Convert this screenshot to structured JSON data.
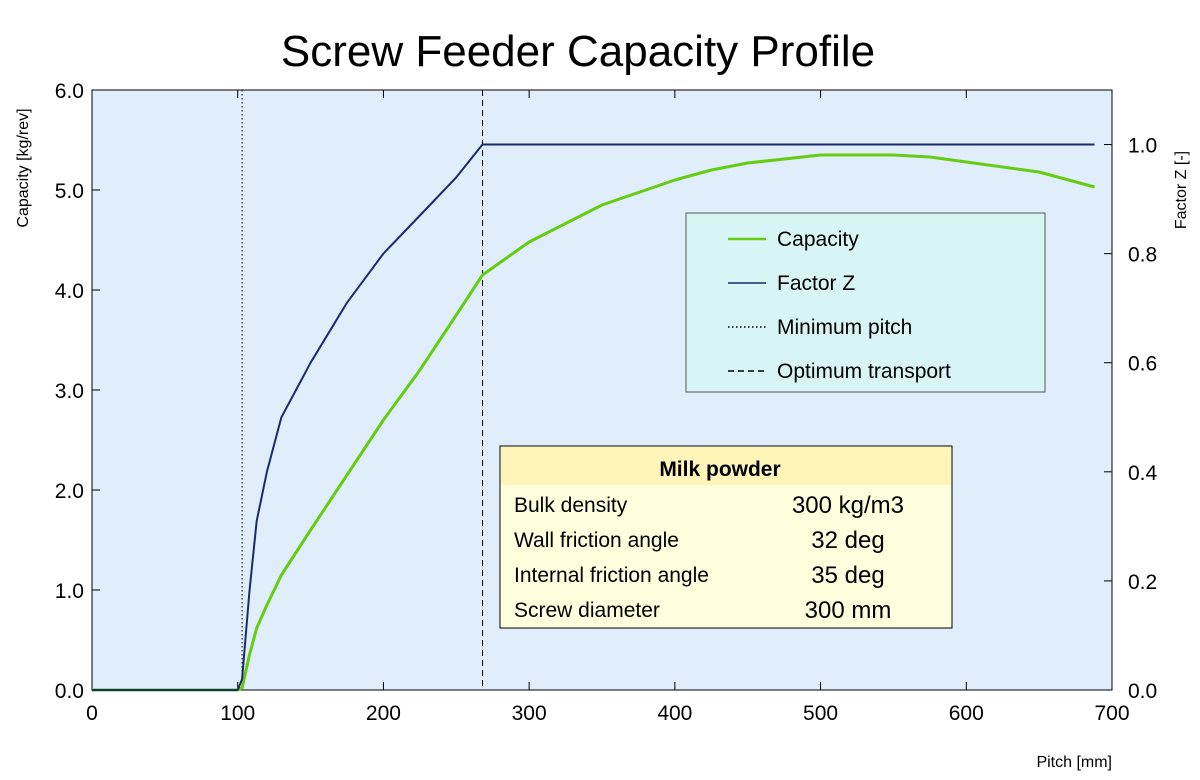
{
  "colors": {
    "plot_bg": "#e0eefb",
    "capacity": "#66cc11",
    "factor_z": "#1a2a6c",
    "legend_bg": "#d8f5f6",
    "info_bg": "#ffffdd",
    "info_header_bg": "#fff5b8"
  },
  "chart_data": {
    "type": "line",
    "title": "Screw Feeder Capacity Profile",
    "xlabel": "Pitch [mm]",
    "ylabel": "Capacity [kg/rev]",
    "y2label": "Factor Z [-]",
    "xlim": [
      0,
      700
    ],
    "ylim": [
      0,
      6
    ],
    "y2lim": [
      0,
      1.1
    ],
    "x_ticks": [
      0,
      100,
      200,
      300,
      400,
      500,
      600,
      700
    ],
    "y_ticks": [
      0,
      1,
      2,
      3,
      4,
      5,
      6
    ],
    "y_tick_labels": [
      "0.0",
      "1.0",
      "2.0",
      "3.0",
      "4.0",
      "5.0",
      "6.0"
    ],
    "y2_ticks": [
      0,
      0.2,
      0.4,
      0.6,
      0.8,
      1.0
    ],
    "y2_tick_labels": [
      "0.0",
      "0.2",
      "0.4",
      "0.6",
      "0.8",
      "1.0"
    ],
    "legend_position": "upper-right",
    "grid": false,
    "series": [
      {
        "name": "Capacity",
        "axis": "left",
        "style": "solid",
        "x": [
          0,
          100,
          103,
          108,
          113,
          120,
          130,
          150,
          175,
          200,
          225,
          250,
          268,
          300,
          350,
          400,
          425,
          450,
          500,
          550,
          575,
          600,
          650,
          688
        ],
        "y": [
          0,
          0,
          0.02,
          0.35,
          0.62,
          0.85,
          1.15,
          1.6,
          2.15,
          2.7,
          3.2,
          3.75,
          4.15,
          4.48,
          4.85,
          5.1,
          5.2,
          5.27,
          5.35,
          5.35,
          5.33,
          5.28,
          5.18,
          5.03
        ]
      },
      {
        "name": "Factor Z",
        "axis": "right",
        "style": "solid",
        "x": [
          0,
          100,
          103,
          108,
          113,
          120,
          130,
          150,
          175,
          200,
          225,
          250,
          268,
          688
        ],
        "y": [
          0,
          0,
          0.02,
          0.18,
          0.31,
          0.4,
          0.5,
          0.6,
          0.71,
          0.8,
          0.87,
          0.94,
          1.0,
          1.0
        ]
      },
      {
        "name": "Minimum pitch",
        "style": "dotted",
        "vline_x": 103
      },
      {
        "name": "Optimum transport",
        "style": "dashed",
        "vline_x": 268
      }
    ],
    "info_box": {
      "title": "Milk powder",
      "rows": [
        {
          "label": "Bulk density",
          "value": "300 kg/m3"
        },
        {
          "label": "Wall friction angle",
          "value": "32 deg"
        },
        {
          "label": "Internal friction angle",
          "value": "35 deg"
        },
        {
          "label": "Screw diameter",
          "value": "300 mm"
        }
      ]
    }
  }
}
